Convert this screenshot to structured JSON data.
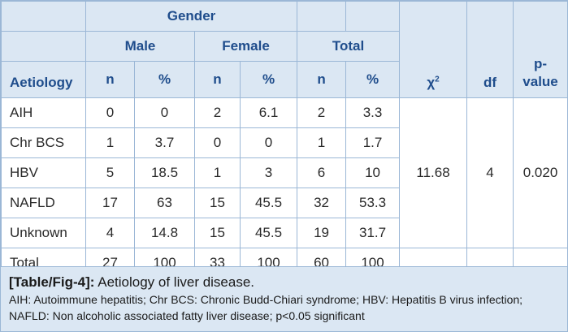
{
  "headers": {
    "gender": "Gender",
    "male": "Male",
    "female": "Female",
    "total": "Total",
    "aetiology": "Aetiology",
    "n": "n",
    "pct": "%",
    "chi_symbol": "χ",
    "chi_superscript": "2",
    "df": "df",
    "p_value": "p-value"
  },
  "rows": [
    {
      "label": "AIH",
      "male_n": "0",
      "male_pct": "0",
      "female_n": "2",
      "female_pct": "6.1",
      "total_n": "2",
      "total_pct": "3.3"
    },
    {
      "label": "Chr BCS",
      "male_n": "1",
      "male_pct": "3.7",
      "female_n": "0",
      "female_pct": "0",
      "total_n": "1",
      "total_pct": "1.7"
    },
    {
      "label": "HBV",
      "male_n": "5",
      "male_pct": "18.5",
      "female_n": "1",
      "female_pct": "3",
      "total_n": "6",
      "total_pct": "10"
    },
    {
      "label": "NAFLD",
      "male_n": "17",
      "male_pct": "63",
      "female_n": "15",
      "female_pct": "45.5",
      "total_n": "32",
      "total_pct": "53.3"
    },
    {
      "label": "Unknown",
      "male_n": "4",
      "male_pct": "14.8",
      "female_n": "15",
      "female_pct": "45.5",
      "total_n": "19",
      "total_pct": "31.7"
    },
    {
      "label": "Total",
      "male_n": "27",
      "male_pct": "100",
      "female_n": "33",
      "female_pct": "100",
      "total_n": "60",
      "total_pct": "100"
    }
  ],
  "stats": {
    "chi2": "11.68",
    "df": "4",
    "p": "0.020"
  },
  "caption": {
    "tag": "[Table/Fig-4]:",
    "title": "Aetiology of liver disease.",
    "note_line1": "AIH: Autoimmune hepatitis; Chr BCS: Chronic Budd-Chiari syndrome; HBV: Hepatitis B virus infection;",
    "note_line2": "NAFLD: Non alcoholic associated fatty liver disease; p<0.05 significant"
  },
  "colors": {
    "header_bg": "#dbe7f3",
    "header_text": "#1f4d8c",
    "border": "#9bb7d6"
  }
}
